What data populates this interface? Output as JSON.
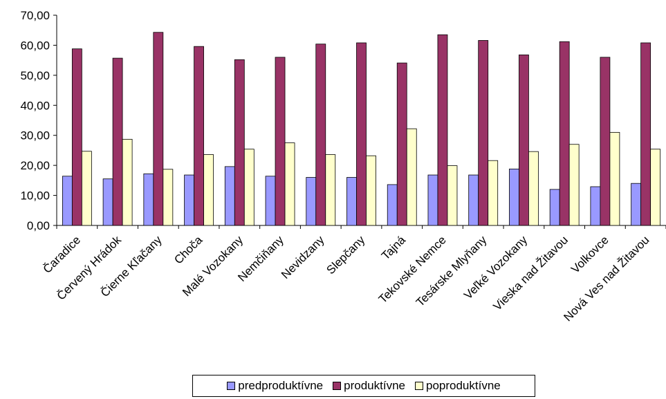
{
  "chart_data": {
    "type": "bar",
    "categories": [
      "Čaradice",
      "Červený Hrádok",
      "Čierne Kľačany",
      "Choča",
      "Malé Vozokany",
      "Nemčiňany",
      "Nevidzany",
      "Slepčany",
      "Tajná",
      "Tekovské Nemce",
      "Tesárske Mlyňany",
      "Veľké Vozokany",
      "Vieska nad Žitavou",
      "Volkovce",
      "Nová Ves nad Žitavou"
    ],
    "series": [
      {
        "name": "predproduktívne",
        "color": "#9999ff",
        "values": [
          16.4,
          15.5,
          17.2,
          16.8,
          19.6,
          16.4,
          16.0,
          16.0,
          13.6,
          16.8,
          16.8,
          18.8,
          12.0,
          12.9,
          14.0
        ]
      },
      {
        "name": "produktívne",
        "color": "#993366",
        "values": [
          58.8,
          55.7,
          64.3,
          59.6,
          55.2,
          56.0,
          60.4,
          60.8,
          54.1,
          63.5,
          61.6,
          56.8,
          61.2,
          56.0,
          60.8
        ]
      },
      {
        "name": "poproduktívne",
        "color": "#ffffcc",
        "values": [
          24.7,
          28.7,
          18.7,
          23.6,
          25.4,
          27.5,
          23.6,
          23.2,
          32.2,
          19.9,
          21.6,
          24.6,
          27.0,
          31.0,
          25.4
        ]
      }
    ],
    "ylim": [
      0,
      70
    ],
    "yticks": [
      "0,00",
      "10,00",
      "20,00",
      "30,00",
      "40,00",
      "50,00",
      "60,00",
      "70,00"
    ],
    "grid": false,
    "legend_position": "bottom"
  }
}
